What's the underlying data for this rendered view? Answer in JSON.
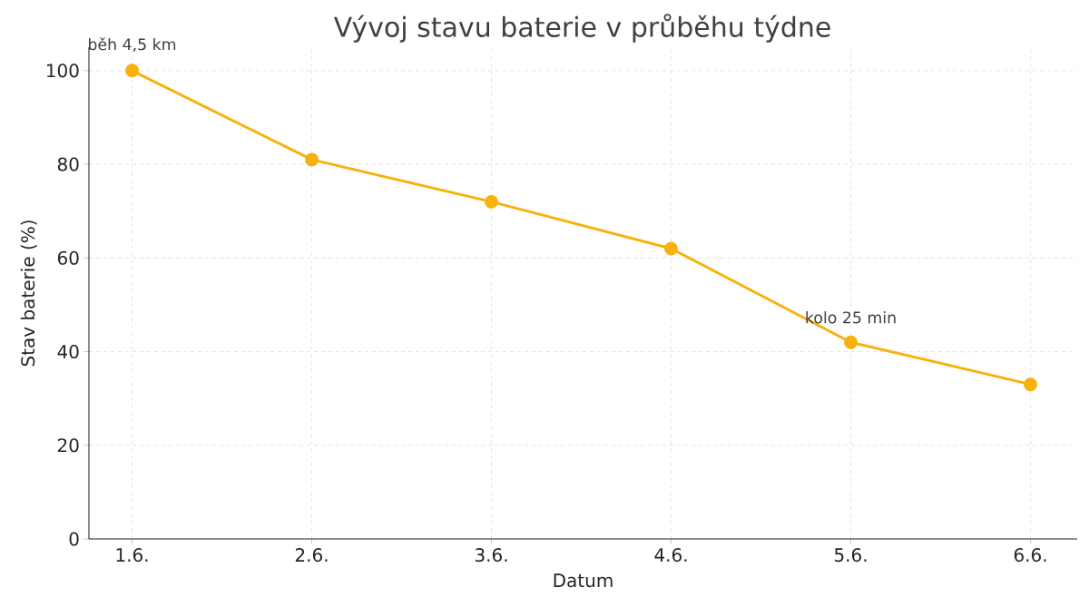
{
  "chart_data": {
    "type": "line",
    "title": "Vývoj stavu baterie v průběhu týdne",
    "xlabel": "Datum",
    "ylabel": "Stav baterie (%)",
    "categories": [
      "1.6.",
      "2.6.",
      "3.6.",
      "4.6.",
      "5.6.",
      "6.6."
    ],
    "series": [
      {
        "color": "#f9b10b",
        "values": [
          100,
          81,
          72,
          62,
          42,
          33
        ]
      }
    ],
    "ylim": [
      0,
      105
    ],
    "yticks": [
      0,
      20,
      40,
      60,
      80,
      100
    ],
    "annotations": [
      {
        "text": "běh 4,5 km",
        "x": "1.6.",
        "y": 100
      },
      {
        "text": "kolo 25 min",
        "x": "5.6.",
        "y": 42
      }
    ],
    "grid": true,
    "marker": "circle",
    "line_style": "solid"
  }
}
